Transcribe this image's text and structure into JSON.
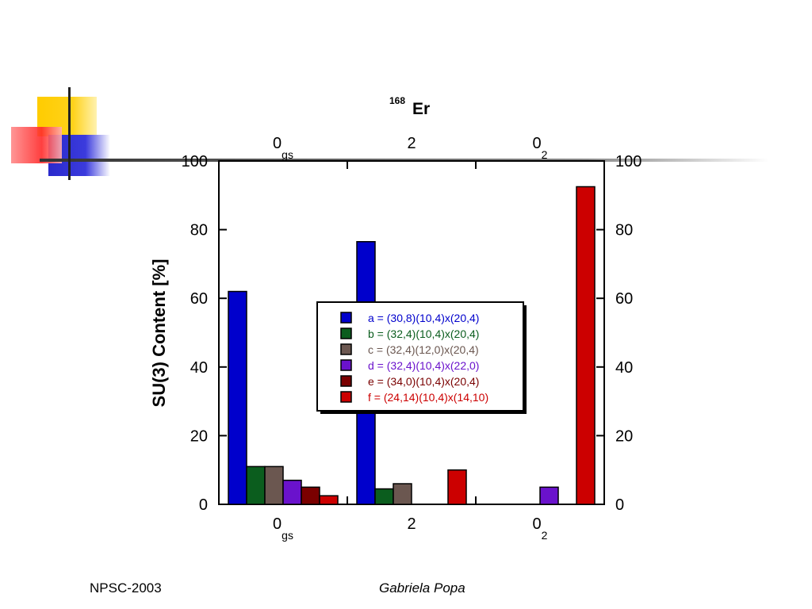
{
  "footer": {
    "left": "NPSC-2003",
    "center": "Gabriela Popa"
  },
  "chart_data": {
    "type": "bar",
    "title_mass": "168",
    "title_element": "Er",
    "ylabel": "SU(3) Content [%]",
    "xlabel": "",
    "ylim": [
      0,
      100
    ],
    "yticks": [
      0,
      20,
      40,
      60,
      80,
      100
    ],
    "grid": false,
    "legend_position": "center",
    "categories": [
      {
        "main": "0",
        "sub": "gs"
      },
      {
        "main": "2",
        "sub": ""
      },
      {
        "main": "0",
        "sub": "2"
      }
    ],
    "series": [
      {
        "name": "a = (30,8)(10,4)x(20,4)",
        "color": "#0000cc",
        "text_color": "#0000cc",
        "values": [
          62,
          76.5,
          0
        ]
      },
      {
        "name": "b = (32,4)(10,4)x(20,4)",
        "color": "#0b5d1e",
        "text_color": "#0b5d1e",
        "values": [
          11,
          4.5,
          0
        ]
      },
      {
        "name": "c = (32,4)(12,0)x(20,4)",
        "color": "#6b5750",
        "text_color": "#6b5750",
        "values": [
          11,
          6,
          0
        ]
      },
      {
        "name": "d = (32,4)(10,4)x(22,0)",
        "color": "#6a12cc",
        "text_color": "#6a12cc",
        "values": [
          7,
          0,
          5
        ]
      },
      {
        "name": "e = (34,0)(10,4)x(20,4)",
        "color": "#7a0000",
        "text_color": "#7a0000",
        "values": [
          5,
          0,
          0
        ]
      },
      {
        "name": "f = (24,14)(10,4)x(14,10)",
        "color": "#cc0000",
        "text_color": "#cc0000",
        "values": [
          2.5,
          10,
          92.5
        ]
      }
    ]
  }
}
